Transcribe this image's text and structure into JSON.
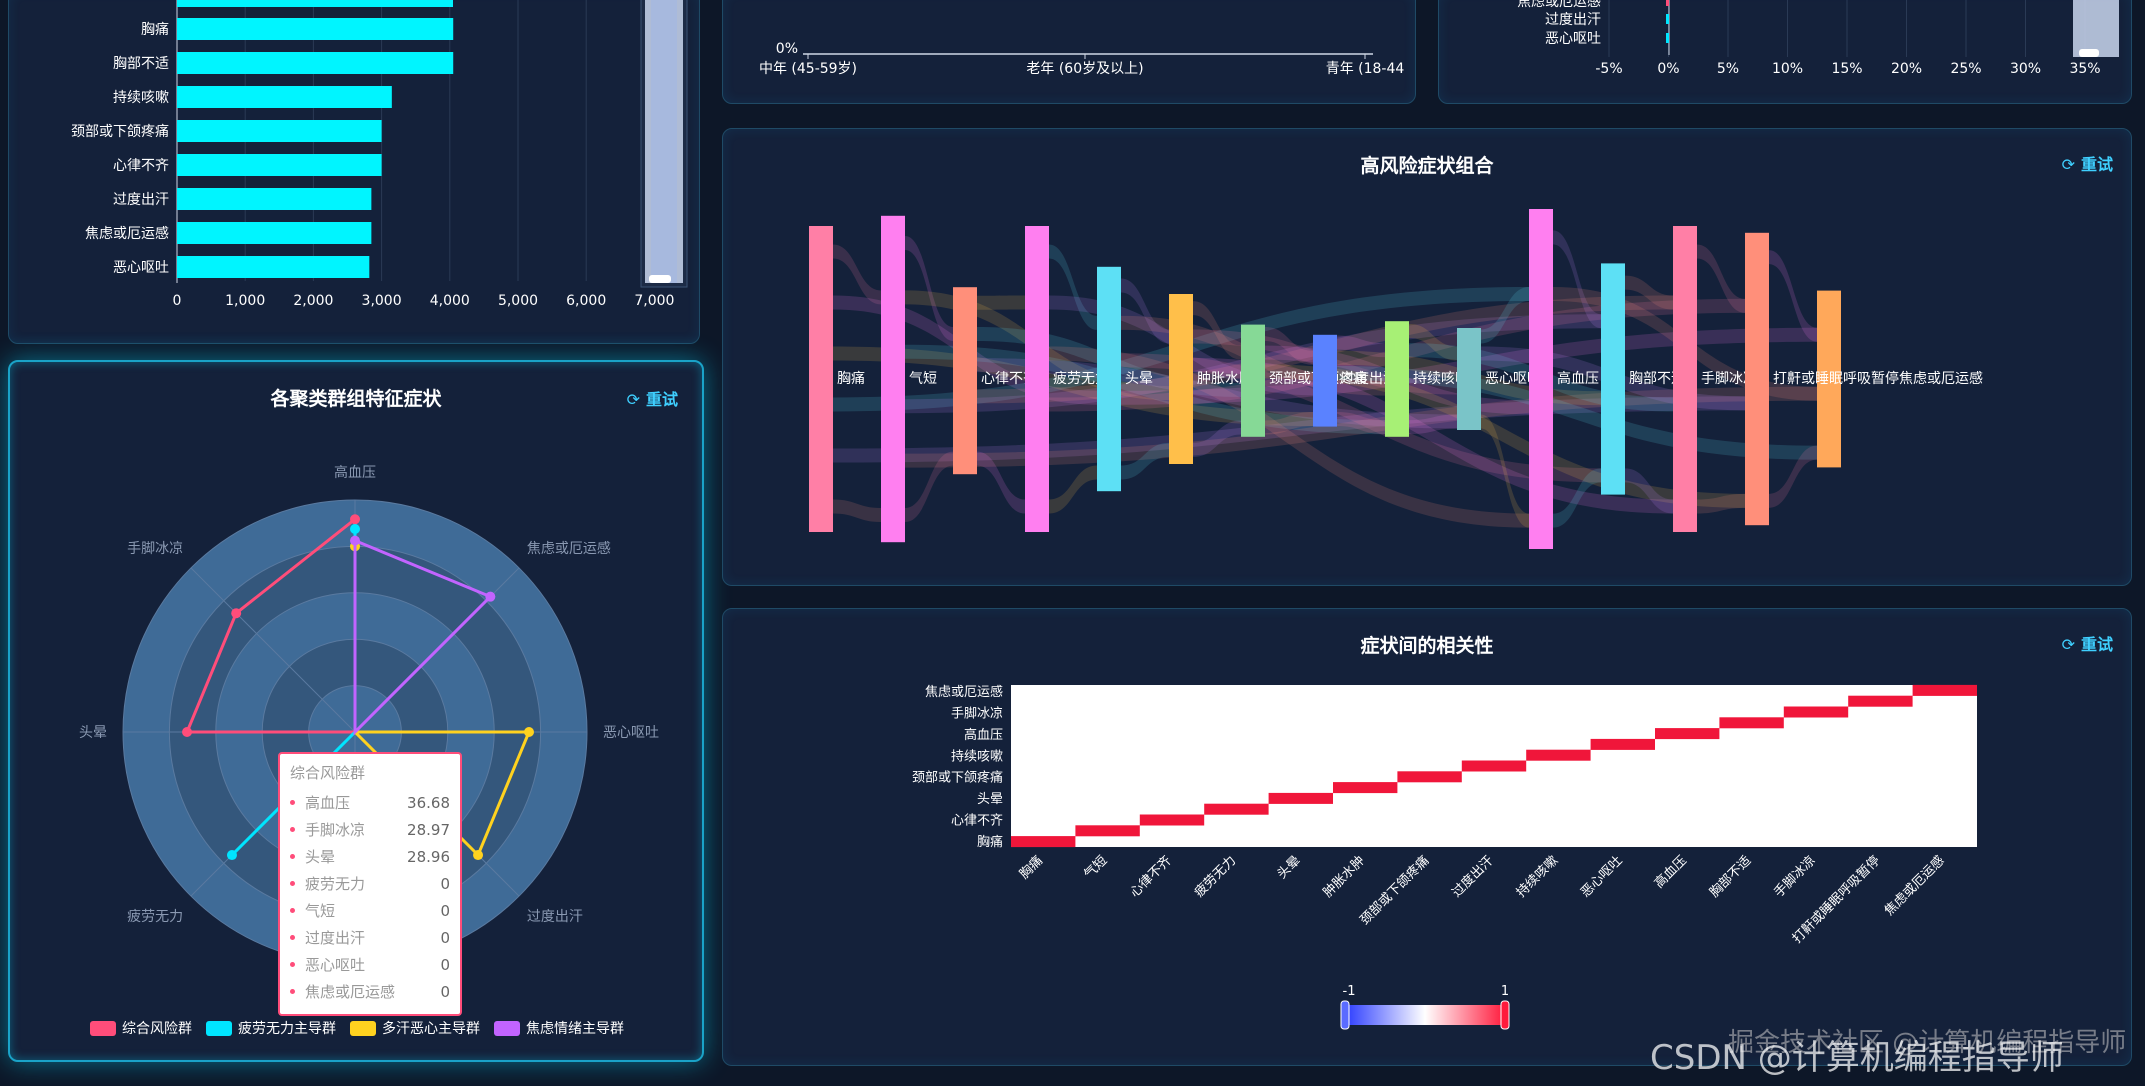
{
  "top_left": {
    "bars": [
      {
        "label": "胸痛",
        "value": 4050
      },
      {
        "label": "胸部不适",
        "value": 4050
      },
      {
        "label": "持续咳嗽",
        "value": 3150
      },
      {
        "label": "颈部或下颌疼痛",
        "value": 3000
      },
      {
        "label": "心律不齐",
        "value": 3000
      },
      {
        "label": "过度出汗",
        "value": 2850
      },
      {
        "label": "焦虑或厄运感",
        "value": 2850
      },
      {
        "label": "恶心呕吐",
        "value": 2820
      }
    ],
    "x_ticks": [
      "0",
      "1,000",
      "2,000",
      "3,000",
      "4,000",
      "5,000",
      "6,000",
      "7,000"
    ],
    "bar_color": "#00f5ff"
  },
  "top_middle": {
    "y_tick": "0%",
    "x_labels": [
      "中年 (45-59岁)",
      "老年 (60岁及以上)",
      "青年 (18-44"
    ]
  },
  "top_right": {
    "labels": [
      "焦虑或厄运感",
      "过度出汗",
      "恶心呕吐"
    ],
    "x_ticks": [
      "-5%",
      "0%",
      "5%",
      "10%",
      "15%",
      "20%",
      "25%",
      "30%",
      "35%"
    ]
  },
  "radar": {
    "title": "各聚类群组特征症状",
    "retry": "重试",
    "indicators": [
      "高血压",
      "焦虑或厄运感",
      "恶心呕吐",
      "过度出汗",
      "气短",
      "疲劳无力",
      "头晕",
      "手脚冰凉"
    ],
    "max": 40,
    "series": [
      {
        "name": "综合风险群",
        "color": "#ff4d7a",
        "values": [
          36.68,
          0,
          0,
          0,
          0,
          0,
          28.96,
          28.97
        ]
      },
      {
        "name": "疲劳无力主导群",
        "color": "#00e5ff",
        "values": [
          35,
          0,
          0,
          0,
          0,
          30,
          0,
          0
        ]
      },
      {
        "name": "多汗恶心主导群",
        "color": "#ffd21f",
        "values": [
          32,
          0,
          30,
          30,
          0,
          0,
          0,
          0
        ]
      },
      {
        "name": "焦虑情绪主导群",
        "color": "#c264ff",
        "values": [
          33,
          33,
          0,
          0,
          0,
          0,
          0,
          0
        ]
      }
    ],
    "tooltip": {
      "title": "综合风险群",
      "rows": [
        {
          "name": "高血压",
          "value": "36.68"
        },
        {
          "name": "手脚冰凉",
          "value": "28.97"
        },
        {
          "name": "头晕",
          "value": "28.96"
        },
        {
          "name": "疲劳无力",
          "value": "0"
        },
        {
          "name": "气短",
          "value": "0"
        },
        {
          "name": "过度出汗",
          "value": "0"
        },
        {
          "name": "恶心呕吐",
          "value": "0"
        },
        {
          "name": "焦虑或厄运感",
          "value": "0"
        }
      ]
    }
  },
  "sankey": {
    "title": "高风险症状组合",
    "retry": "重试",
    "nodes": [
      {
        "name": "胸痛",
        "color": "#ff7fa6",
        "top": 0.05,
        "bottom": 0.95
      },
      {
        "name": "气短",
        "color": "#ff7ff0",
        "top": 0.02,
        "bottom": 0.98
      },
      {
        "name": "心律不齐",
        "color": "#ff8f7a",
        "top": 0.23,
        "bottom": 0.78
      },
      {
        "name": "疲劳无力",
        "color": "#ff7ff0",
        "top": 0.05,
        "bottom": 0.95
      },
      {
        "name": "头晕",
        "color": "#5de0f5",
        "top": 0.17,
        "bottom": 0.83
      },
      {
        "name": "肿胀水肿",
        "color": "#ffbf4a",
        "top": 0.25,
        "bottom": 0.75
      },
      {
        "name": "颈部或下颌疼痛",
        "color": "#86d996",
        "top": 0.34,
        "bottom": 0.67
      },
      {
        "name": "过度出汗",
        "color": "#5a82ff",
        "top": 0.37,
        "bottom": 0.64
      },
      {
        "name": "持续咳嗽",
        "color": "#a7f075",
        "top": 0.33,
        "bottom": 0.67
      },
      {
        "name": "恶心呕吐",
        "color": "#7ac4c8",
        "top": 0.35,
        "bottom": 0.65
      },
      {
        "name": "高血压",
        "color": "#ff7ff0",
        "top": 0.0,
        "bottom": 1.0
      },
      {
        "name": "胸部不适",
        "color": "#5de0f5",
        "top": 0.16,
        "bottom": 0.84
      },
      {
        "name": "手脚冰凉",
        "color": "#ff7fa6",
        "top": 0.05,
        "bottom": 0.95
      },
      {
        "name": "打鼾或睡眠呼吸暂停",
        "color": "#ff8f7a",
        "top": 0.07,
        "bottom": 0.93
      },
      {
        "name": "焦虑或厄运感",
        "color": "#ffa85a",
        "top": 0.24,
        "bottom": 0.76
      }
    ],
    "label_overlap": "打鼾或睡眠呼吸暂停焦虑或厄运感"
  },
  "heatmap": {
    "title": "症状间的相关性",
    "retry": "重试",
    "y_labels": [
      "胸痛",
      "心律不齐",
      "头晕",
      "颈部或下颌疼痛",
      "持续咳嗽",
      "高血压",
      "手脚冰凉",
      "焦虑或厄运感"
    ],
    "x_labels": [
      "胸痛",
      "气短",
      "心律不齐",
      "疲劳无力",
      "头晕",
      "肿胀水肿",
      "颈部或下颌疼痛",
      "过度出汗",
      "持续咳嗽",
      "恶心呕吐",
      "高血压",
      "胸部不适",
      "手脚冰凉",
      "打鼾或睡眠呼吸暂停",
      "焦虑或厄运感"
    ],
    "visual_min": "-1",
    "visual_max": "1",
    "diag_color": "#f0163a"
  },
  "watermark": "CSDN @计算机编程指导师",
  "watermark2": "掘金技术社区 @计算机编程指导师"
}
